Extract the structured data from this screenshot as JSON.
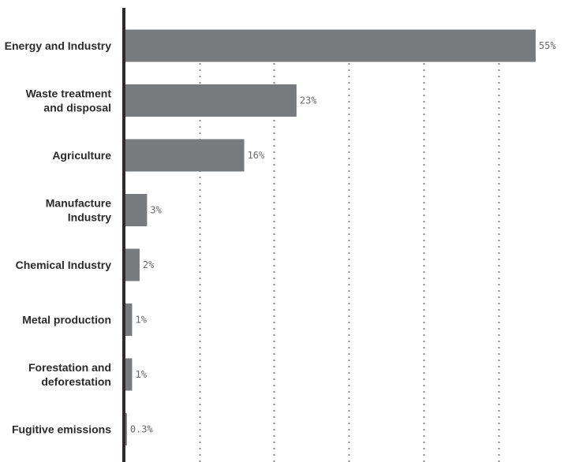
{
  "colors": {
    "bar": "#787b7d",
    "axis": "#2f2b2a",
    "grid": "#8a8a8a",
    "category_text": "#2b2b2b",
    "value_text": "#6b6b6b",
    "background": "#ffffff"
  },
  "chart_data": {
    "type": "bar",
    "orientation": "horizontal",
    "categories": [
      [
        "Energy and Industry"
      ],
      [
        "Waste treatment",
        "and disposal"
      ],
      [
        "Agriculture"
      ],
      [
        "Manufacture",
        "Industry"
      ],
      [
        "Chemical Industry"
      ],
      [
        "Metal production"
      ],
      [
        "Forestation and",
        "deforestation"
      ],
      [
        "Fugitive emissions"
      ]
    ],
    "values": [
      55,
      23,
      16,
      3,
      2,
      1,
      1,
      0.3
    ],
    "value_labels": [
      "55%",
      "23%",
      "16%",
      "3%",
      "2%",
      "1%",
      "1%",
      "0.3%"
    ],
    "xlim": [
      0,
      55
    ],
    "gridlines_at": [
      10,
      20,
      30,
      40,
      50
    ],
    "grid": true,
    "grid_style": "dotted-vertical",
    "legend": "none"
  }
}
